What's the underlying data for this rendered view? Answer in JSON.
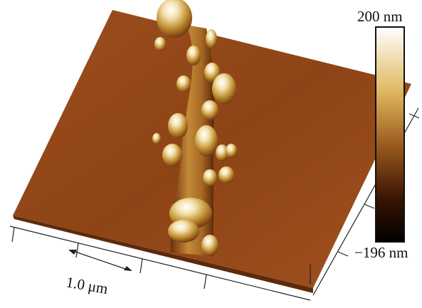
{
  "colorbar": {
    "max_label": "200 nm",
    "min_label": "−196 nm"
  },
  "scale_bar": {
    "label": "1.0 μm"
  }
}
